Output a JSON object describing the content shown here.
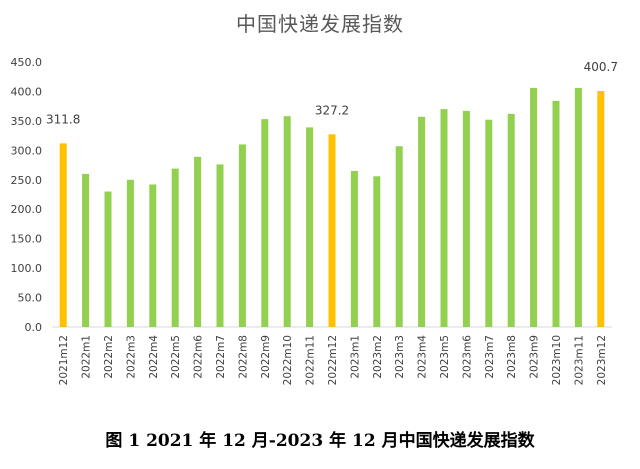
{
  "caption": "图 1 2021 年 12 月-2023 年 12 月中国快递发展指数",
  "colors": {
    "regular": "#92d050",
    "highlight": "#ffc000",
    "axis": "#d9d9d9"
  },
  "chart_data": {
    "type": "bar",
    "title": "中国快递发展指数",
    "xlabel": "",
    "ylabel": "",
    "ylim": [
      0,
      450
    ],
    "yticks": [
      "0.0",
      "50.0",
      "100.0",
      "150.0",
      "200.0",
      "250.0",
      "300.0",
      "350.0",
      "400.0",
      "450.0"
    ],
    "grid": false,
    "categories": [
      "2021m12",
      "2022m1",
      "2022m2",
      "2022m3",
      "2022m4",
      "2022m5",
      "2022m6",
      "2022m7",
      "2022m8",
      "2022m9",
      "2022m10",
      "2022m11",
      "2022m12",
      "2023m1",
      "2023m2",
      "2023m3",
      "2023m4",
      "2023m5",
      "2023m6",
      "2023m7",
      "2023m8",
      "2023m9",
      "2023m10",
      "2023m11",
      "2023m12"
    ],
    "values": [
      311.8,
      260,
      230,
      250,
      242,
      269,
      289,
      276,
      310,
      353,
      358,
      339,
      327.2,
      265,
      256,
      307,
      357,
      370,
      367,
      352,
      362,
      406,
      384,
      406,
      400.7
    ],
    "highlighted": [
      "2021m12",
      "2022m12",
      "2023m12"
    ],
    "data_labels": [
      {
        "category": "2021m12",
        "text": "311.8"
      },
      {
        "category": "2022m12",
        "text": "327.2"
      },
      {
        "category": "2023m12",
        "text": "400.7"
      }
    ]
  }
}
